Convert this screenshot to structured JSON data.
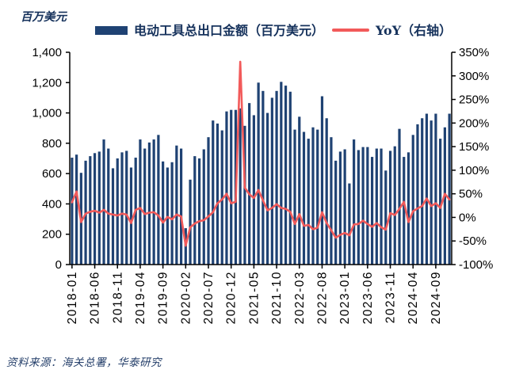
{
  "meta": {
    "unit_label": "百万美元",
    "source_note": "资料来源：海关总署，华泰研究"
  },
  "colors": {
    "bar": "#1f4273",
    "line": "#f25a5a",
    "axis": "#000000",
    "cjk_text": "#16325c"
  },
  "legend": [
    {
      "label": "电动工具总出口金额（百万美元）",
      "type": "bar",
      "color": "#1f4273"
    },
    {
      "label": "YoY（右轴）",
      "type": "line",
      "color": "#f25a5a"
    }
  ],
  "chart_data": {
    "type": "bar",
    "subtype": "bar-line-combo-dual-axis",
    "grid": false,
    "legend_position": "top",
    "x": [
      "2018-01",
      "2018-02",
      "2018-03",
      "2018-04",
      "2018-05",
      "2018-06",
      "2018-07",
      "2018-08",
      "2018-09",
      "2018-10",
      "2018-11",
      "2018-12",
      "2019-01",
      "2019-02",
      "2019-03",
      "2019-04",
      "2019-05",
      "2019-06",
      "2019-07",
      "2019-08",
      "2019-09",
      "2019-10",
      "2019-11",
      "2019-12",
      "2020-01",
      "2020-02",
      "2020-03",
      "2020-04",
      "2020-05",
      "2020-06",
      "2020-07",
      "2020-08",
      "2020-09",
      "2020-10",
      "2020-11",
      "2020-12",
      "2021-01",
      "2021-02",
      "2021-03",
      "2021-04",
      "2021-05",
      "2021-06",
      "2021-07",
      "2021-08",
      "2021-09",
      "2021-10",
      "2021-11",
      "2021-12",
      "2022-01",
      "2022-02",
      "2022-03",
      "2022-04",
      "2022-05",
      "2022-06",
      "2022-07",
      "2022-08",
      "2022-09",
      "2022-10",
      "2022-11",
      "2022-12",
      "2023-01",
      "2023-02",
      "2023-03",
      "2023-04",
      "2023-05",
      "2023-06",
      "2023-07",
      "2023-08",
      "2023-09",
      "2023-10",
      "2023-11",
      "2023-12",
      "2024-01",
      "2024-02",
      "2024-03",
      "2024-04",
      "2024-05",
      "2024-06",
      "2024-07",
      "2024-08",
      "2024-09",
      "2024-10",
      "2024-11",
      "2024-12"
    ],
    "x_tick_labels": [
      "2018-01",
      "2018-06",
      "2018-11",
      "2019-04",
      "2019-09",
      "2020-02",
      "2020-07",
      "2020-12",
      "2021-05",
      "2021-10",
      "2022-03",
      "2022-08",
      "2023-01",
      "2023-06",
      "2023-11",
      "2024-04",
      "2024-09"
    ],
    "x_tick_every": 5,
    "series": [
      {
        "name": "电动工具总出口金额（百万美元）",
        "type": "bar",
        "axis": "left",
        "color": "#1f4273",
        "values": [
          705,
          725,
          605,
          685,
          715,
          735,
          745,
          825,
          765,
          635,
          700,
          740,
          750,
          640,
          705,
          825,
          765,
          805,
          825,
          855,
          680,
          640,
          675,
          785,
          765,
          240,
          560,
          715,
          700,
          760,
          840,
          950,
          930,
          885,
          1010,
          1020,
          1020,
          1030,
          915,
          1065,
          985,
          1200,
          1145,
          1000,
          1100,
          1145,
          1205,
          1180,
          1140,
          890,
          975,
          875,
          830,
          905,
          890,
          1110,
          965,
          840,
          685,
          745,
          760,
          535,
          825,
          755,
          775,
          775,
          710,
          765,
          765,
          620,
          750,
          780,
          895,
          710,
          740,
          855,
          925,
          965,
          995,
          950,
          995,
          830,
          905,
          995
        ]
      },
      {
        "name": "YoY（右轴）",
        "type": "line",
        "axis": "right",
        "color": "#f25a5a",
        "unit": "%",
        "values": [
          32,
          55,
          -10,
          8,
          12,
          14,
          10,
          16,
          8,
          6,
          4,
          8,
          6,
          -12,
          16,
          20,
          7,
          10,
          11,
          4,
          -11,
          1,
          -4,
          6,
          2,
          -60,
          -21,
          -13,
          -8,
          -6,
          2,
          11,
          30,
          38,
          50,
          30,
          33,
          330,
          63,
          49,
          41,
          58,
          36,
          15,
          20,
          28,
          20,
          18,
          12,
          -14,
          7,
          -18,
          -16,
          -25,
          -22,
          11,
          -12,
          -27,
          -43,
          -37,
          -33,
          -38,
          -15,
          -14,
          -7,
          -14,
          -20,
          -12,
          -21,
          -26,
          9,
          5,
          18,
          33,
          -10,
          13,
          19,
          24,
          40,
          24,
          30,
          20,
          50,
          38
        ]
      }
    ],
    "left_axis": {
      "title": "百万美元",
      "min": 0,
      "max": 1400,
      "step": 200,
      "tick_labels": [
        "0",
        "200",
        "400",
        "600",
        "800",
        "1,000",
        "1,200",
        "1,400"
      ]
    },
    "right_axis": {
      "title": "YoY（右轴）",
      "min": -100,
      "max": 350,
      "step": 50,
      "tick_labels": [
        "-100%",
        "-50%",
        "0%",
        "50%",
        "100%",
        "150%",
        "200%",
        "250%",
        "300%",
        "350%"
      ]
    }
  }
}
